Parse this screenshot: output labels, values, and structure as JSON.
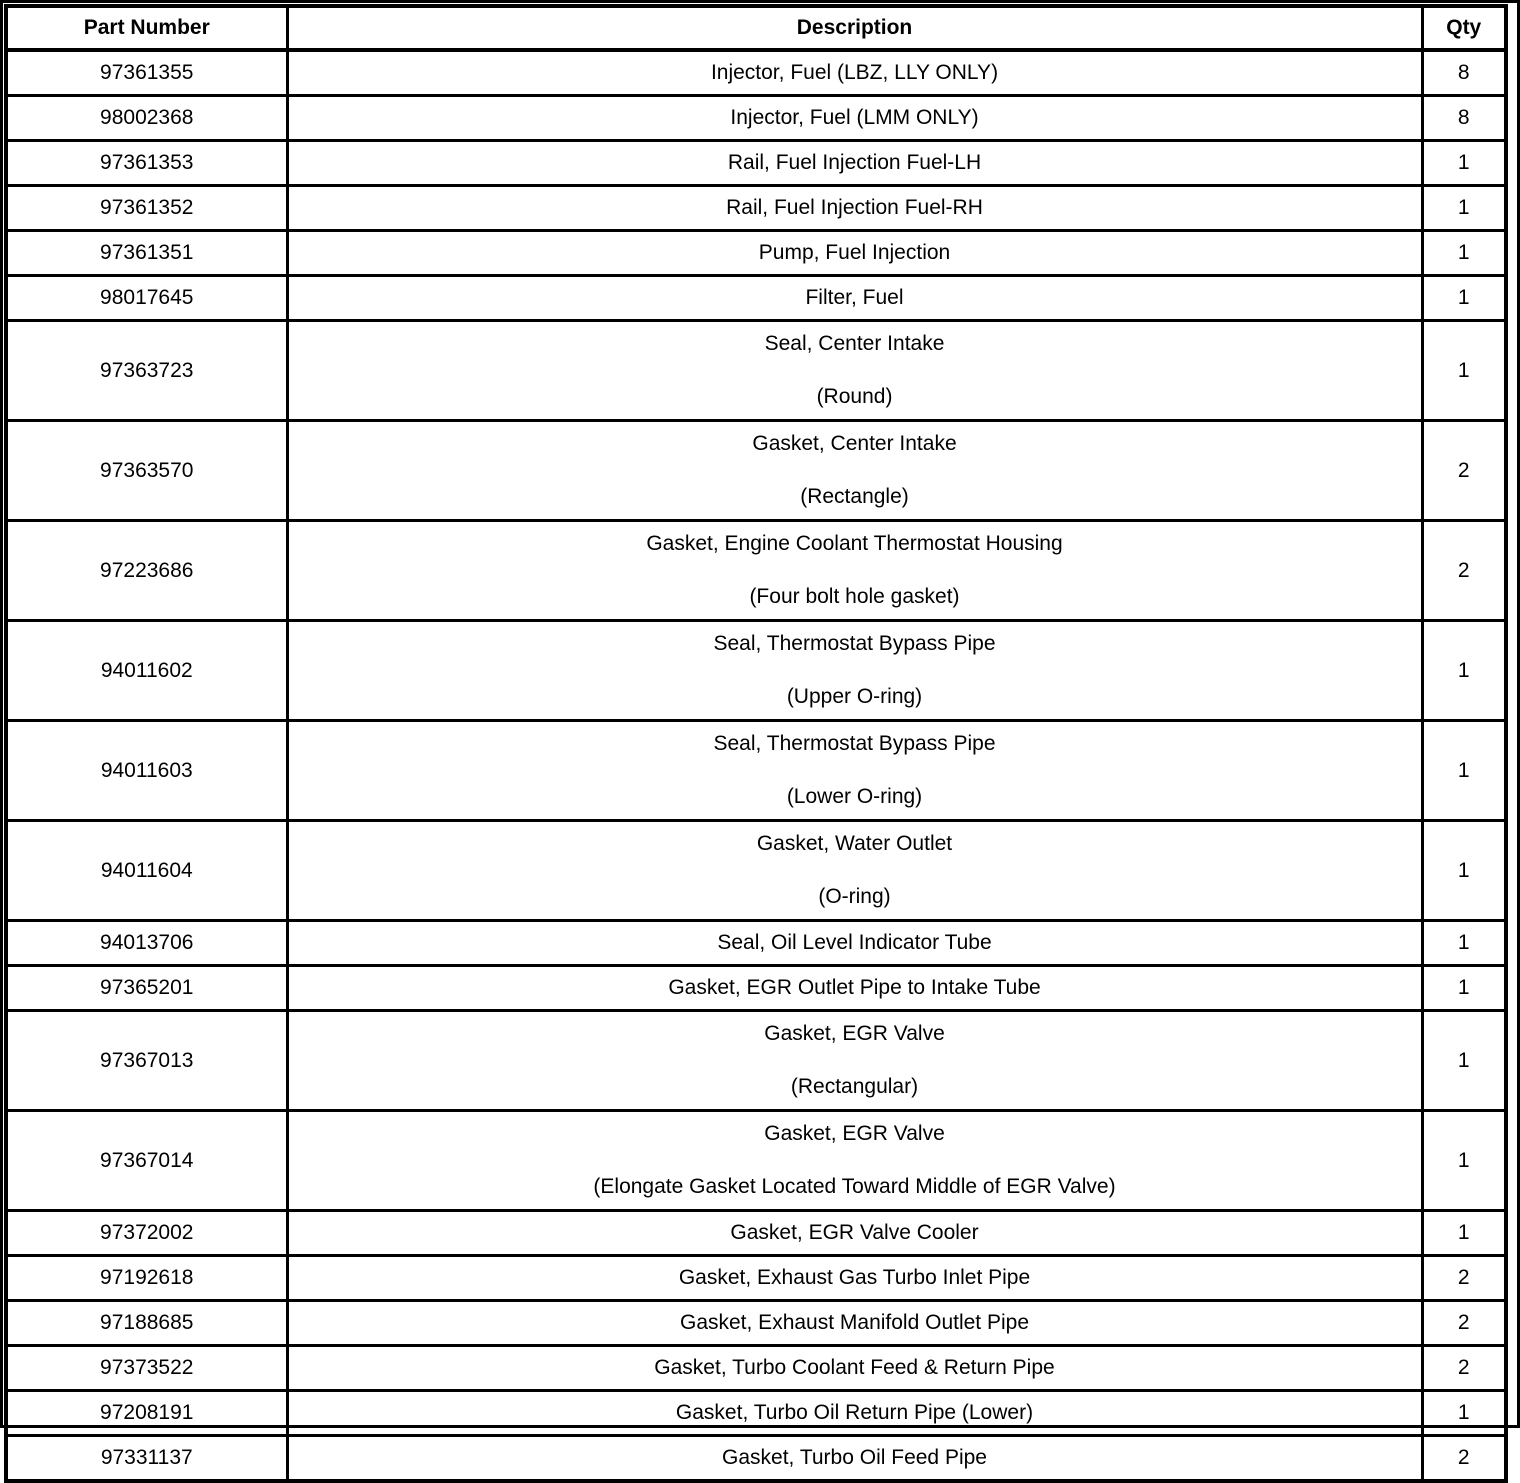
{
  "table": {
    "columns": [
      "Part Number",
      "Description",
      "Qty"
    ],
    "rows": [
      {
        "part_number": "97361355",
        "description_lines": [
          "Injector, Fuel (LBZ, LLY ONLY)"
        ],
        "qty": "8"
      },
      {
        "part_number": "98002368",
        "description_lines": [
          "Injector, Fuel (LMM ONLY)"
        ],
        "qty": "8"
      },
      {
        "part_number": "97361353",
        "description_lines": [
          "Rail, Fuel Injection Fuel-LH"
        ],
        "qty": "1"
      },
      {
        "part_number": "97361352",
        "description_lines": [
          "Rail, Fuel Injection Fuel-RH"
        ],
        "qty": "1"
      },
      {
        "part_number": "97361351",
        "description_lines": [
          "Pump, Fuel Injection"
        ],
        "qty": "1"
      },
      {
        "part_number": "98017645",
        "description_lines": [
          "Filter, Fuel"
        ],
        "qty": "1"
      },
      {
        "part_number": "97363723",
        "description_lines": [
          "Seal, Center Intake",
          "(Round)"
        ],
        "qty": "1"
      },
      {
        "part_number": "97363570",
        "description_lines": [
          "Gasket, Center Intake",
          "(Rectangle)"
        ],
        "qty": "2"
      },
      {
        "part_number": "97223686",
        "description_lines": [
          "Gasket, Engine Coolant Thermostat Housing",
          "(Four bolt hole gasket)"
        ],
        "qty": "2"
      },
      {
        "part_number": "94011602",
        "description_lines": [
          "Seal, Thermostat Bypass Pipe",
          "(Upper O-ring)"
        ],
        "qty": "1"
      },
      {
        "part_number": "94011603",
        "description_lines": [
          "Seal, Thermostat Bypass Pipe",
          "(Lower O-ring)"
        ],
        "qty": "1"
      },
      {
        "part_number": "94011604",
        "description_lines": [
          "Gasket, Water Outlet",
          "(O-ring)"
        ],
        "qty": "1"
      },
      {
        "part_number": "94013706",
        "description_lines": [
          "Seal, Oil Level Indicator Tube"
        ],
        "qty": "1"
      },
      {
        "part_number": "97365201",
        "description_lines": [
          "Gasket, EGR Outlet Pipe to Intake Tube"
        ],
        "qty": "1"
      },
      {
        "part_number": "97367013",
        "description_lines": [
          "Gasket, EGR Valve",
          "(Rectangular)"
        ],
        "qty": "1"
      },
      {
        "part_number": "97367014",
        "description_lines": [
          "Gasket, EGR Valve",
          "(Elongate Gasket Located Toward Middle of EGR Valve)"
        ],
        "qty": "1"
      },
      {
        "part_number": "97372002",
        "description_lines": [
          "Gasket, EGR Valve Cooler"
        ],
        "qty": "1"
      },
      {
        "part_number": "97192618",
        "description_lines": [
          "Gasket, Exhaust Gas Turbo Inlet Pipe"
        ],
        "qty": "2"
      },
      {
        "part_number": "97188685",
        "description_lines": [
          "Gasket, Exhaust Manifold Outlet Pipe"
        ],
        "qty": "2"
      },
      {
        "part_number": "97373522",
        "description_lines": [
          "Gasket, Turbo Coolant Feed & Return Pipe"
        ],
        "qty": "2"
      },
      {
        "part_number": "97208191",
        "description_lines": [
          "Gasket, Turbo Oil Return Pipe (Lower)"
        ],
        "qty": "1"
      },
      {
        "part_number": "97331137",
        "description_lines": [
          "Gasket, Turbo Oil Feed Pipe"
        ],
        "qty": "2"
      }
    ]
  }
}
